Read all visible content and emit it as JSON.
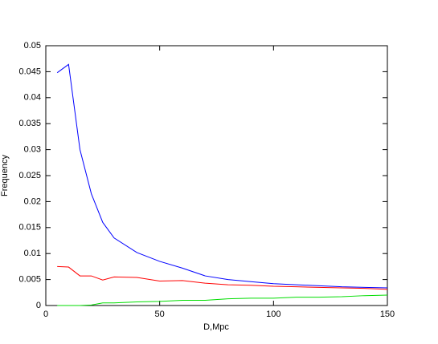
{
  "chart_data": {
    "type": "line",
    "x_label": "D,Mpc",
    "y_label": "Frequency",
    "x": [
      5,
      10,
      15,
      20,
      25,
      30,
      40,
      50,
      60,
      70,
      80,
      90,
      100,
      110,
      120,
      130,
      140,
      150
    ],
    "series": [
      {
        "color": "#0000ff",
        "values": [
          0.0448,
          0.0464,
          0.03,
          0.0215,
          0.016,
          0.013,
          0.0102,
          0.0085,
          0.0072,
          0.0057,
          0.005,
          0.0046,
          0.0042,
          0.004,
          0.0038,
          0.0036,
          0.0035,
          0.0034
        ]
      },
      {
        "color": "#ff0000",
        "values": [
          0.0075,
          0.0074,
          0.0057,
          0.0057,
          0.0049,
          0.0055,
          0.0054,
          0.0047,
          0.0048,
          0.0043,
          0.004,
          0.0039,
          0.0037,
          0.0036,
          0.0035,
          0.0034,
          0.0033,
          0.0031
        ]
      },
      {
        "color": "#00dd00",
        "values": [
          0,
          0,
          0,
          0.0001,
          0.0005,
          0.0005,
          0.0007,
          0.0008,
          0.001,
          0.001,
          0.0013,
          0.0014,
          0.0014,
          0.0016,
          0.0016,
          0.0017,
          0.0019,
          0.002
        ]
      }
    ],
    "xlim": [
      0,
      150
    ],
    "xticks": [
      0,
      50,
      100,
      150
    ],
    "ylim": [
      0,
      0.05
    ],
    "yticks": [
      0,
      0.005,
      0.01,
      0.015,
      0.02,
      0.025,
      0.03,
      0.035,
      0.04,
      0.045,
      0.05
    ]
  }
}
